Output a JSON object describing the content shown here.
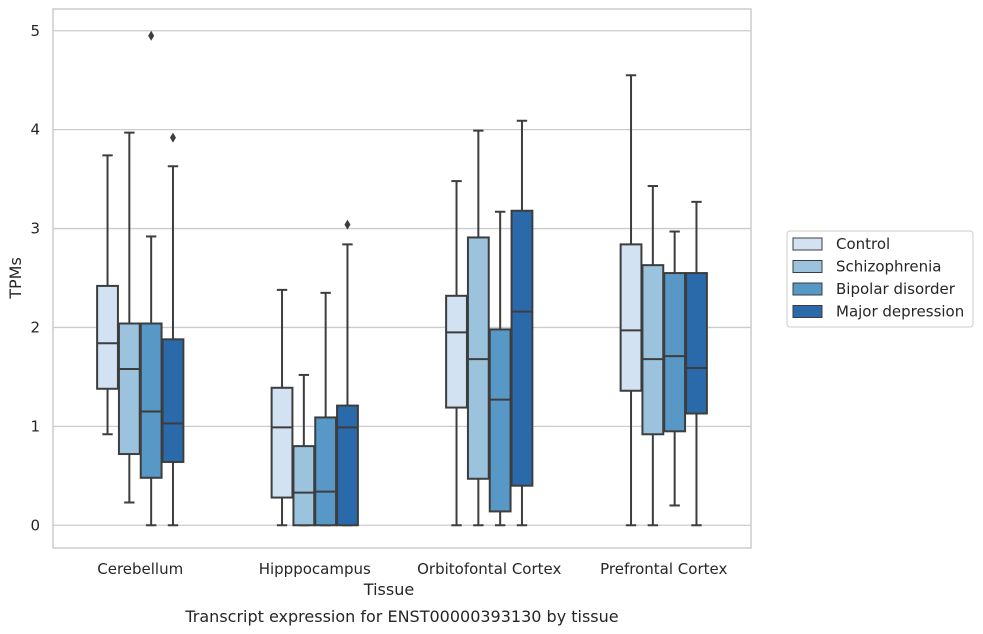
{
  "chart_data": {
    "type": "boxplot",
    "xlabel": "Tissue",
    "ylabel": "TPMs",
    "caption": "Transcript expression for ENST00000393130 by tissue",
    "ylim": [
      -0.23,
      5.22
    ],
    "yticks": [
      "0",
      "1",
      "2",
      "3",
      "4",
      "5"
    ],
    "grid": "horizontal",
    "legend_position": "right",
    "categories": [
      "Cerebellum",
      "Hipppocampus",
      "Orbitofontal Cortex",
      "Prefrontal Cortex"
    ],
    "series": [
      {
        "name": "Control",
        "color": "#d2e2f3",
        "boxes": [
          {
            "whislo": 0.92,
            "q1": 1.38,
            "med": 1.84,
            "q3": 2.42,
            "whishi": 3.74,
            "fliers": []
          },
          {
            "whislo": 0.0,
            "q1": 0.28,
            "med": 0.99,
            "q3": 1.39,
            "whishi": 2.38,
            "fliers": []
          },
          {
            "whislo": 0.0,
            "q1": 1.19,
            "med": 1.95,
            "q3": 2.32,
            "whishi": 3.48,
            "fliers": []
          },
          {
            "whislo": 0.0,
            "q1": 1.36,
            "med": 1.97,
            "q3": 2.84,
            "whishi": 4.55,
            "fliers": []
          }
        ]
      },
      {
        "name": "Schizophrenia",
        "color": "#9bc3de",
        "boxes": [
          {
            "whislo": 0.23,
            "q1": 0.72,
            "med": 1.58,
            "q3": 2.04,
            "whishi": 3.97,
            "fliers": []
          },
          {
            "whislo": 0.0,
            "q1": 0.0,
            "med": 0.33,
            "q3": 0.8,
            "whishi": 1.52,
            "fliers": []
          },
          {
            "whislo": 0.0,
            "q1": 0.47,
            "med": 1.68,
            "q3": 2.91,
            "whishi": 3.99,
            "fliers": []
          },
          {
            "whislo": 0.0,
            "q1": 0.92,
            "med": 1.68,
            "q3": 2.63,
            "whishi": 3.43,
            "fliers": []
          }
        ]
      },
      {
        "name": "Bipolar disorder",
        "color": "#5898c6",
        "boxes": [
          {
            "whislo": 0.0,
            "q1": 0.48,
            "med": 1.15,
            "q3": 2.04,
            "whishi": 2.92,
            "fliers": [
              4.95
            ]
          },
          {
            "whislo": 0.0,
            "q1": 0.0,
            "med": 0.34,
            "q3": 1.09,
            "whishi": 2.35,
            "fliers": []
          },
          {
            "whislo": 0.0,
            "q1": 0.14,
            "med": 1.27,
            "q3": 1.98,
            "whishi": 3.17,
            "fliers": []
          },
          {
            "whislo": 0.2,
            "q1": 0.95,
            "med": 1.71,
            "q3": 2.55,
            "whishi": 2.97,
            "fliers": []
          }
        ]
      },
      {
        "name": "Major depression",
        "color": "#2a6aaa",
        "boxes": [
          {
            "whislo": 0.0,
            "q1": 0.64,
            "med": 1.03,
            "q3": 1.88,
            "whishi": 3.63,
            "fliers": [
              3.92
            ]
          },
          {
            "whislo": 0.0,
            "q1": 0.0,
            "med": 0.99,
            "q3": 1.21,
            "whishi": 2.84,
            "fliers": [
              3.04
            ]
          },
          {
            "whislo": 0.0,
            "q1": 0.4,
            "med": 2.16,
            "q3": 3.18,
            "whishi": 4.09,
            "fliers": []
          },
          {
            "whislo": 0.0,
            "q1": 1.13,
            "med": 1.59,
            "q3": 2.55,
            "whishi": 3.27,
            "fliers": []
          }
        ]
      }
    ]
  }
}
